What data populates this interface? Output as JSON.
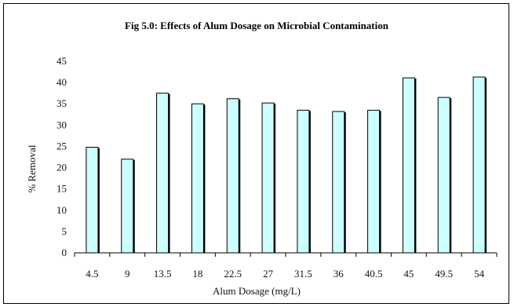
{
  "chart_data": {
    "type": "bar",
    "title": "Fig 5.0: Effects of Alum Dosage on Microbial Contamination",
    "xlabel": "Alum Dosage (mg/L)",
    "ylabel": "% Removal",
    "categories": [
      "4.5",
      "9",
      "13.5",
      "18",
      "22.5",
      "27",
      "31.5",
      "36",
      "40.5",
      "45",
      "49.5",
      "54"
    ],
    "values": [
      24.8,
      22,
      37.5,
      35,
      36.2,
      35.2,
      33.5,
      33.2,
      33.5,
      41.1,
      36.5,
      41.3
    ],
    "ylim": [
      0,
      45
    ],
    "yticks": [
      0,
      5,
      10,
      15,
      20,
      25,
      30,
      35,
      40,
      45
    ],
    "grid": false,
    "legend": "none",
    "colors": {
      "bar_fill": "#ccffff",
      "bar_stroke": "#000000"
    }
  }
}
